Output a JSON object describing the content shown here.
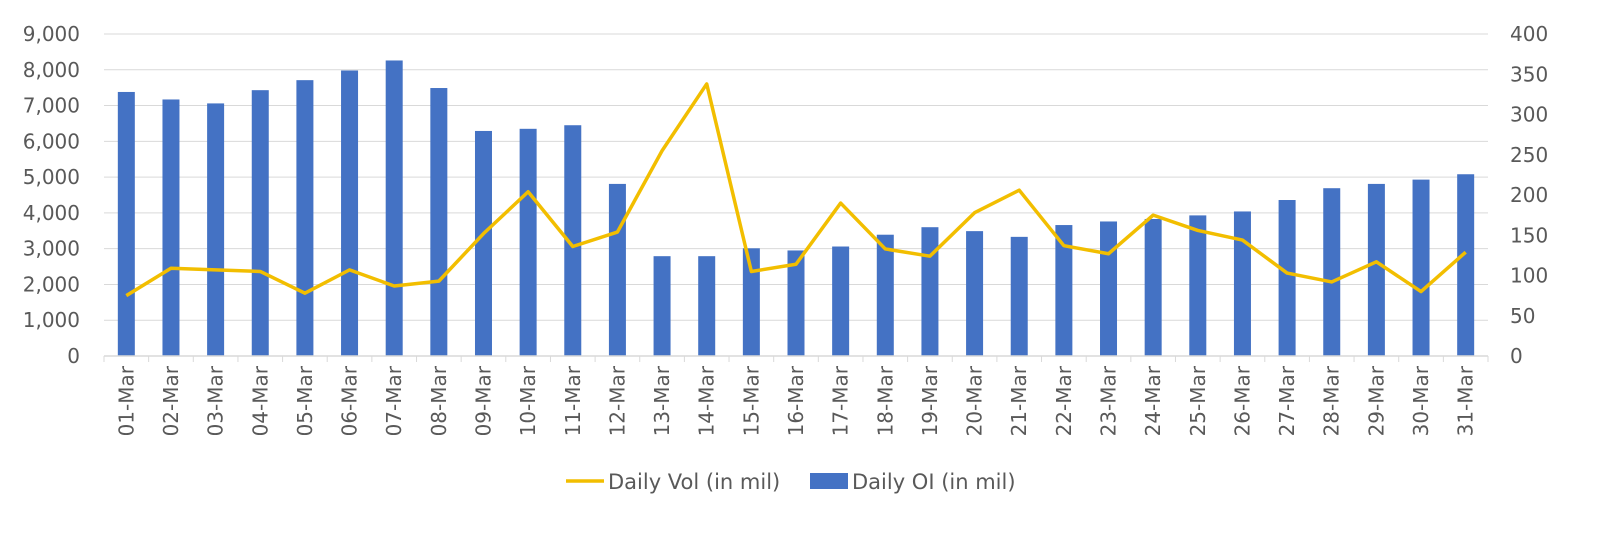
{
  "chart_data": {
    "type": "bar",
    "categories": [
      "01-Mar",
      "02-Mar",
      "03-Mar",
      "04-Mar",
      "05-Mar",
      "06-Mar",
      "07-Mar",
      "08-Mar",
      "09-Mar",
      "10-Mar",
      "11-Mar",
      "12-Mar",
      "13-Mar",
      "14-Mar",
      "15-Mar",
      "16-Mar",
      "17-Mar",
      "18-Mar",
      "19-Mar",
      "20-Mar",
      "21-Mar",
      "22-Mar",
      "23-Mar",
      "24-Mar",
      "25-Mar",
      "26-Mar",
      "27-Mar",
      "28-Mar",
      "29-Mar",
      "30-Mar",
      "31-Mar"
    ],
    "series": [
      {
        "name": "Daily OI (in mil)",
        "type": "bar",
        "axis": "left",
        "color": "#4472C4",
        "values": [
          7380,
          7170,
          7060,
          7430,
          7710,
          7980,
          8260,
          7490,
          6290,
          6350,
          6450,
          4810,
          2790,
          2790,
          3010,
          2950,
          3060,
          3390,
          3600,
          3490,
          3330,
          3660,
          3760,
          3830,
          3930,
          4040,
          4360,
          4690,
          4810,
          4930,
          5080
        ]
      },
      {
        "name": "Daily Vol (in mil)",
        "type": "line",
        "axis": "right",
        "color": "#F2BE00",
        "values": [
          75,
          109,
          107,
          105,
          78,
          107,
          87,
          93,
          152,
          204,
          136,
          154,
          255,
          338,
          105,
          114,
          190,
          133,
          124,
          178,
          206,
          137,
          127,
          175,
          156,
          144,
          103,
          92,
          117,
          80,
          129
        ]
      }
    ],
    "left_axis": {
      "ylim": [
        0,
        9000
      ],
      "ticks": [
        0,
        1000,
        2000,
        3000,
        4000,
        5000,
        6000,
        7000,
        8000,
        9000
      ],
      "tick_labels": [
        "0",
        "1,000",
        "2,000",
        "3,000",
        "4,000",
        "5,000",
        "6,000",
        "7,000",
        "8,000",
        "9,000"
      ]
    },
    "right_axis": {
      "ylim": [
        0,
        400
      ],
      "ticks": [
        0,
        50,
        100,
        150,
        200,
        250,
        300,
        350,
        400
      ],
      "tick_labels": [
        "0",
        "50",
        "100",
        "150",
        "200",
        "250",
        "300",
        "350",
        "400"
      ]
    },
    "grid": true,
    "legend_position": "bottom",
    "legend": [
      {
        "label": "Daily Vol (in mil)",
        "marker": "line"
      },
      {
        "label": "Daily OI (in mil)",
        "marker": "bar"
      }
    ],
    "colors": {
      "bar": "#4472C4",
      "line": "#F2BE00",
      "grid": "#D9D9D9",
      "text": "#595959"
    }
  }
}
